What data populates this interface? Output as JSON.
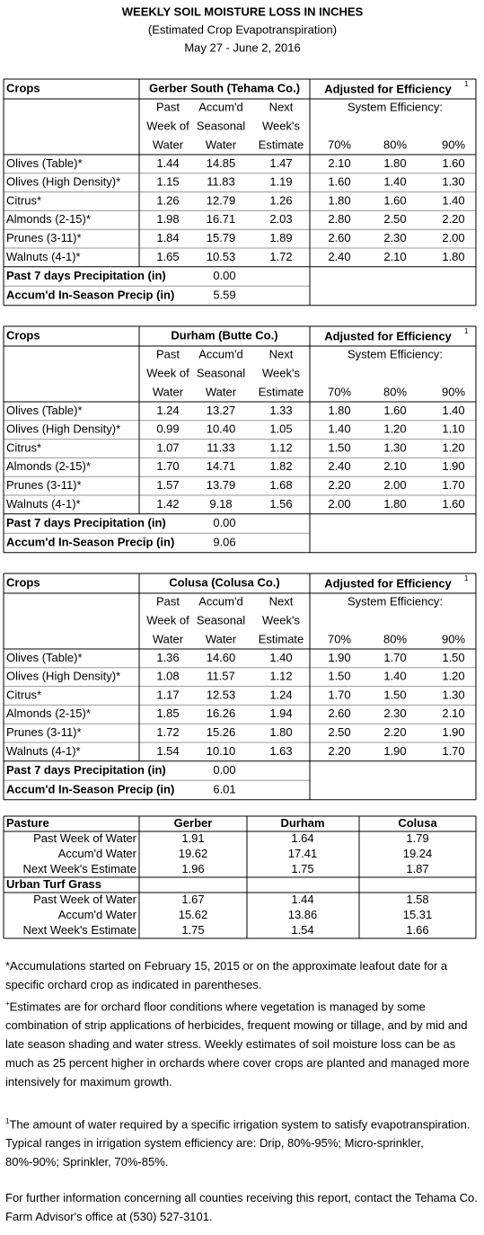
{
  "header": {
    "title": "WEEKLY SOIL MOISTURE LOSS IN INCHES",
    "subtitle": "(Estimated Crop Evapotranspiration)",
    "dates": "May 27 - June 2, 2016"
  },
  "stations": [
    {
      "crops_label": "Crops",
      "station": "Gerber South (Tehama Co.)",
      "adjusted": "Adjusted for Efficiency",
      "adjusted_note": "1",
      "system_efficiency": "System Efficiency:",
      "columns": [
        [
          "Past",
          "Week of",
          "Water"
        ],
        [
          "Accum'd",
          "Seasonal",
          "Water"
        ],
        [
          "Next",
          "Week's",
          "Estimate"
        ]
      ],
      "efficiency_columns": [
        "70%",
        "80%",
        "90%"
      ],
      "rows": [
        [
          "Olives (Table)*",
          "1.44",
          "14.85",
          "1.47",
          "2.10",
          "1.80",
          "1.60"
        ],
        [
          "Olives (High Density)*",
          "1.15",
          "11.83",
          "1.19",
          "1.60",
          "1.40",
          "1.30"
        ],
        [
          "Citrus*",
          "1.26",
          "12.79",
          "1.26",
          "1.80",
          "1.60",
          "1.40"
        ],
        [
          "Almonds (2-15)*",
          "1.98",
          "16.71",
          "2.03",
          "2.80",
          "2.50",
          "2.20"
        ],
        [
          "Prunes (3-11)*",
          "1.84",
          "15.79",
          "1.89",
          "2.60",
          "2.30",
          "2.00"
        ],
        [
          "Walnuts (4-1)*",
          "1.65",
          "10.53",
          "1.72",
          "2.40",
          "2.10",
          "1.80"
        ]
      ],
      "precip": [
        [
          "Past 7 days Precipitation (in)",
          "0.00"
        ],
        [
          "Accum'd In-Season Precip (in)",
          "5.59"
        ]
      ]
    },
    {
      "crops_label": "Crops",
      "station": "Durham (Butte Co.)",
      "adjusted": "Adjusted for Efficiency",
      "adjusted_note": "1",
      "system_efficiency": "System Efficiency:",
      "columns": [
        [
          "Past",
          "Week of",
          "Water"
        ],
        [
          "Accum'd",
          "Seasonal",
          "Water"
        ],
        [
          "Next",
          "Week's",
          "Estimate"
        ]
      ],
      "efficiency_columns": [
        "70%",
        "80%",
        "90%"
      ],
      "rows": [
        [
          "Olives (Table)*",
          "1.24",
          "13.27",
          "1.33",
          "1.80",
          "1.60",
          "1.40"
        ],
        [
          "Olives (High Density)*",
          "0.99",
          "10.40",
          "1.05",
          "1.40",
          "1.20",
          "1.10"
        ],
        [
          "Citrus*",
          "1.07",
          "11.33",
          "1.12",
          "1.50",
          "1.30",
          "1.20"
        ],
        [
          "Almonds (2-15)*",
          "1.70",
          "14.71",
          "1.82",
          "2.40",
          "2.10",
          "1.90"
        ],
        [
          "Prunes (3-11)*",
          "1.57",
          "13.79",
          "1.68",
          "2.20",
          "2.00",
          "1.70"
        ],
        [
          "Walnuts (4-1)*",
          "1.42",
          "9.18",
          "1.56",
          "2.00",
          "1.80",
          "1.60"
        ]
      ],
      "precip": [
        [
          "Past 7 days Precipitation (in)",
          "0.00"
        ],
        [
          "Accum'd In-Season Precip (in)",
          "9.06"
        ]
      ]
    },
    {
      "crops_label": "Crops",
      "station": "Colusa (Colusa Co.)",
      "adjusted": "Adjusted for Efficiency",
      "adjusted_note": "1",
      "system_efficiency": "System Efficiency:",
      "columns": [
        [
          "Past",
          "Week of",
          "Water"
        ],
        [
          "Accum'd",
          "Seasonal",
          "Water"
        ],
        [
          "Next",
          "Week's",
          "Estimate"
        ]
      ],
      "efficiency_columns": [
        "70%",
        "80%",
        "90%"
      ],
      "rows": [
        [
          "Olives (Table)*",
          "1.36",
          "14.60",
          "1.40",
          "1.90",
          "1.70",
          "1.50"
        ],
        [
          "Olives (High Density)*",
          "1.08",
          "11.57",
          "1.12",
          "1.50",
          "1.40",
          "1.20"
        ],
        [
          "Citrus*",
          "1.17",
          "12.53",
          "1.24",
          "1.70",
          "1.50",
          "1.30"
        ],
        [
          "Almonds (2-15)*",
          "1.85",
          "16.26",
          "1.94",
          "2.60",
          "2.30",
          "2.10"
        ],
        [
          "Prunes (3-11)*",
          "1.72",
          "15.26",
          "1.80",
          "2.50",
          "2.20",
          "1.90"
        ],
        [
          "Walnuts (4-1)*",
          "1.54",
          "10.10",
          "1.63",
          "2.20",
          "1.90",
          "1.70"
        ]
      ],
      "precip": [
        [
          "Past 7 days Precipitation (in)",
          "0.00"
        ],
        [
          "Accum'd In-Season Precip (in)",
          "6.01"
        ]
      ]
    }
  ],
  "pasture": {
    "header": [
      "Pasture",
      "Gerber",
      "Durham",
      "Colusa"
    ],
    "rows": [
      [
        "Past Week of Water",
        "1.91",
        "1.64",
        "1.79"
      ],
      [
        "Accum'd Water",
        "19.62",
        "17.41",
        "19.24"
      ],
      [
        "Next Week's Estimate",
        "1.96",
        "1.75",
        "1.87"
      ]
    ],
    "urban_label": "Urban Turf Grass",
    "urban_rows": [
      [
        "Past Week of Water",
        "1.67",
        "1.44",
        "1.58"
      ],
      [
        "Accum'd Water",
        "15.62",
        "13.86",
        "15.31"
      ],
      [
        "Next Week's Estimate",
        "1.75",
        "1.54",
        "1.66"
      ]
    ]
  },
  "notes": [
    {
      "mark": "",
      "text": "*Accumulations started on February 15, 2015 or on the approximate leafout date for a specific orchard crop as indicated in parentheses."
    },
    {
      "mark": "+",
      "text": "Estimates are for orchard floor conditions where vegetation is managed by some combination of strip applications of herbicides, frequent mowing or tillage, and by mid and late season shading and water stress.  Weekly estimates of soil moisture loss can be as much as 25 percent higher in orchards where cover crops are planted and managed more intensively for maximum growth."
    },
    {
      "mark": "1",
      "text": "The amount of water required by a specific irrigation system to satisfy evapotranspiration. Typical ranges in irrigation system efficiency are: Drip, 80%-95%; Micro-sprinkler, 80%-90%; Sprinkler, 70%-85%."
    },
    {
      "mark": "",
      "text": "For further information concerning all counties receiving this report, contact the Tehama Co. Farm Advisor's office at (530) 527-3101."
    }
  ]
}
